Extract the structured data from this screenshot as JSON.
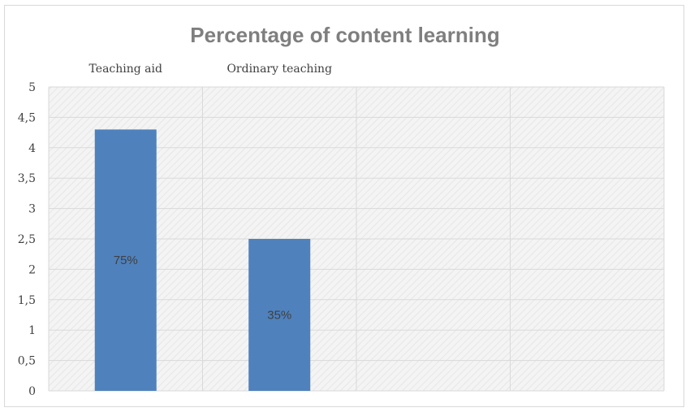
{
  "chart_data": {
    "type": "bar",
    "title": "Percentage of content learning",
    "categories": [
      "Teaching aid",
      "Ordinary teaching",
      "",
      ""
    ],
    "values": [
      4.3,
      2.5,
      null,
      null
    ],
    "data_labels": [
      "75%",
      "35%",
      "",
      ""
    ],
    "ylim": [
      0,
      5
    ],
    "yticks": [
      0,
      0.5,
      1,
      1.5,
      2,
      2.5,
      3,
      3.5,
      4,
      4.5,
      5
    ],
    "ytick_labels": [
      "0",
      "0,5",
      "1",
      "1,5",
      "2",
      "2,5",
      "3",
      "3,5",
      "4",
      "4,5",
      "5"
    ],
    "xlabel": "",
    "ylabel": "",
    "grid": true,
    "legend": "none",
    "category_label_position": "top",
    "bar_color": "#4f81bd",
    "plot_background": "#f2f2f2",
    "grid_color": "#d9d9d9"
  }
}
